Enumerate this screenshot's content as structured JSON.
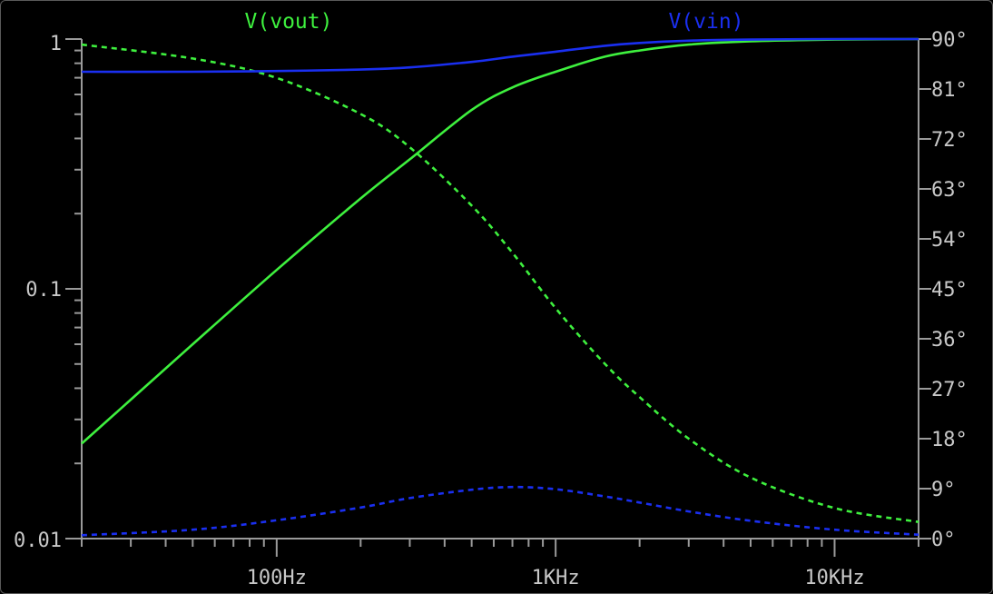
{
  "chart_data": {
    "type": "line",
    "title": "",
    "x_scale": "log",
    "x_range": [
      20,
      20000
    ],
    "x_ticks": [
      {
        "value": 100,
        "label": "100Hz"
      },
      {
        "value": 1000,
        "label": "1KHz"
      },
      {
        "value": 10000,
        "label": "10KHz"
      }
    ],
    "y_left_scale": "log",
    "y_left_range": [
      0.01,
      1
    ],
    "y_left_ticks": [
      {
        "value": 1,
        "label": "1"
      },
      {
        "value": 0.1,
        "label": "0.1"
      },
      {
        "value": 0.01,
        "label": "0.01"
      }
    ],
    "y_right_range": [
      0,
      90
    ],
    "y_right_ticks": [
      {
        "value": 90,
        "label": "90°"
      },
      {
        "value": 81,
        "label": "81°"
      },
      {
        "value": 72,
        "label": "72°"
      },
      {
        "value": 63,
        "label": "63°"
      },
      {
        "value": 54,
        "label": "54°"
      },
      {
        "value": 45,
        "label": "45°"
      },
      {
        "value": 36,
        "label": "36°"
      },
      {
        "value": 27,
        "label": "27°"
      },
      {
        "value": 18,
        "label": "18°"
      },
      {
        "value": 9,
        "label": "9°"
      },
      {
        "value": 0,
        "label": "0°"
      }
    ],
    "grid": false,
    "legend": "top",
    "series": [
      {
        "name": "V(vout)",
        "quantity": "magnitude",
        "axis": "left",
        "style": "solid",
        "color": "#3ef03e",
        "x": [
          20,
          30,
          50,
          100,
          200,
          300,
          500,
          700,
          1000,
          1500,
          2000,
          3000,
          5000,
          10000,
          20000
        ],
        "y": [
          0.024,
          0.036,
          0.06,
          0.119,
          0.23,
          0.33,
          0.52,
          0.64,
          0.74,
          0.85,
          0.9,
          0.95,
          0.98,
          0.995,
          1.0
        ]
      },
      {
        "name": "V(vout)",
        "quantity": "phase",
        "axis": "right",
        "style": "dashed",
        "color": "#3ef03e",
        "x": [
          20,
          50,
          100,
          200,
          300,
          500,
          700,
          1000,
          1500,
          2000,
          3000,
          5000,
          10000,
          20000
        ],
        "y": [
          89,
          86.5,
          83,
          76.5,
          70.5,
          60,
          51.5,
          41.5,
          31.5,
          25.5,
          18,
          11,
          5.5,
          3
        ]
      },
      {
        "name": "V(vin)",
        "quantity": "magnitude",
        "axis": "left",
        "style": "solid",
        "color": "#1a2ff0",
        "x": [
          20,
          50,
          100,
          200,
          300,
          500,
          700,
          1000,
          1500,
          2000,
          3000,
          5000,
          10000,
          20000
        ],
        "y": [
          0.74,
          0.74,
          0.745,
          0.755,
          0.77,
          0.81,
          0.85,
          0.89,
          0.94,
          0.965,
          0.985,
          0.995,
          1.0,
          1.0
        ]
      },
      {
        "name": "V(vin)",
        "quantity": "phase",
        "axis": "right",
        "style": "dashed",
        "color": "#1a2ff0",
        "x": [
          20,
          50,
          100,
          200,
          300,
          500,
          700,
          1000,
          1500,
          2000,
          3000,
          5000,
          10000,
          20000
        ],
        "y": [
          0.6,
          1.6,
          3.3,
          5.6,
          7.3,
          8.8,
          9.3,
          8.9,
          7.6,
          6.5,
          4.9,
          3.2,
          1.6,
          0.7
        ]
      }
    ]
  }
}
